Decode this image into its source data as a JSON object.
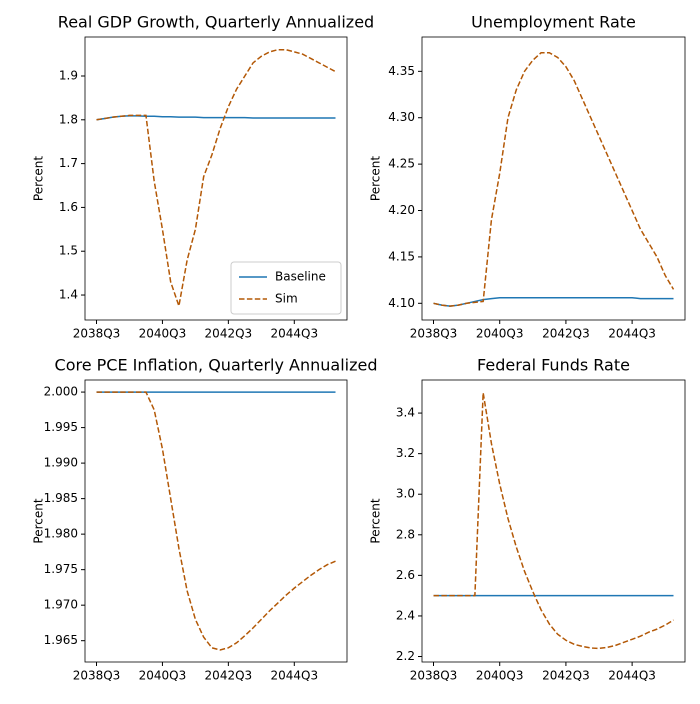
{
  "chart_data": [
    {
      "type": "line",
      "title": "Real GDP Growth, Quarterly Annualized",
      "y_label": "Percent",
      "legend": "lower right",
      "categories": [
        "2038Q3",
        null,
        null,
        null,
        null,
        null,
        null,
        null,
        "2040Q3",
        null,
        null,
        null,
        null,
        null,
        null,
        null,
        "2042Q3",
        null,
        null,
        null,
        null,
        null,
        null,
        null,
        "2044Q3",
        null,
        null,
        null,
        null,
        null
      ],
      "series": [
        {
          "name": "Baseline",
          "color": "#1f77b4",
          "linestyle": "solid",
          "values": [
            1.8,
            1.803,
            1.806,
            1.808,
            1.809,
            1.809,
            1.808,
            1.808,
            1.807,
            1.807,
            1.806,
            1.806,
            1.806,
            1.805,
            1.805,
            1.805,
            1.805,
            1.805,
            1.805,
            1.804,
            1.804,
            1.804,
            1.804,
            1.804,
            1.804,
            1.804,
            1.804,
            1.804,
            1.804,
            1.804
          ]
        },
        {
          "name": "Sim",
          "color": "#b35806",
          "linestyle": "dashed",
          "values": [
            1.8,
            1.803,
            1.806,
            1.808,
            1.81,
            1.81,
            1.81,
            1.66,
            1.55,
            1.43,
            1.375,
            1.48,
            1.55,
            1.67,
            1.72,
            1.78,
            1.83,
            1.87,
            1.9,
            1.93,
            1.945,
            1.955,
            1.96,
            1.96,
            1.955,
            1.95,
            1.94,
            1.93,
            1.92,
            1.91
          ]
        }
      ],
      "ylim": [
        1.343,
        1.989
      ],
      "yticks": [
        1.4,
        1.5,
        1.6,
        1.7,
        1.8,
        1.9
      ]
    },
    {
      "type": "line",
      "title": "Unemployment Rate",
      "y_label": "Percent",
      "categories": [
        "2038Q3",
        null,
        null,
        null,
        null,
        null,
        null,
        null,
        "2040Q3",
        null,
        null,
        null,
        null,
        null,
        null,
        null,
        "2042Q3",
        null,
        null,
        null,
        null,
        null,
        null,
        null,
        "2044Q3",
        null,
        null,
        null,
        null,
        null
      ],
      "series": [
        {
          "name": "Baseline",
          "color": "#1f77b4",
          "linestyle": "solid",
          "values": [
            4.1,
            4.098,
            4.097,
            4.098,
            4.1,
            4.102,
            4.104,
            4.105,
            4.106,
            4.106,
            4.106,
            4.106,
            4.106,
            4.106,
            4.106,
            4.106,
            4.106,
            4.106,
            4.106,
            4.106,
            4.106,
            4.106,
            4.106,
            4.106,
            4.106,
            4.105,
            4.105,
            4.105,
            4.105,
            4.105
          ]
        },
        {
          "name": "Sim",
          "color": "#b35806",
          "linestyle": "dashed",
          "values": [
            4.1,
            4.098,
            4.097,
            4.098,
            4.1,
            4.101,
            4.102,
            4.19,
            4.24,
            4.3,
            4.33,
            4.35,
            4.362,
            4.37,
            4.37,
            4.365,
            4.355,
            4.34,
            4.32,
            4.3,
            4.28,
            4.26,
            4.24,
            4.22,
            4.2,
            4.18,
            4.165,
            4.15,
            4.13,
            4.115
          ]
        }
      ],
      "ylim": [
        4.082,
        4.387
      ],
      "yticks": [
        {
          "value": 4.1,
          "label": "4.10"
        },
        4.15,
        {
          "value": 4.2,
          "label": "4.20"
        },
        4.25,
        {
          "value": 4.3,
          "label": "4.30"
        },
        4.35
      ]
    },
    {
      "type": "line",
      "title": "Core PCE Inflation, Quarterly Annualized",
      "y_label": "Percent",
      "categories": [
        "2038Q3",
        null,
        null,
        null,
        null,
        null,
        null,
        null,
        "2040Q3",
        null,
        null,
        null,
        null,
        null,
        null,
        null,
        "2042Q3",
        null,
        null,
        null,
        null,
        null,
        null,
        null,
        "2044Q3",
        null,
        null,
        null,
        null,
        null
      ],
      "series": [
        {
          "name": "Baseline",
          "color": "#1f77b4",
          "linestyle": "solid",
          "values": [
            2,
            2,
            2,
            2,
            2,
            2,
            2,
            2,
            2,
            2,
            2,
            2,
            2,
            2,
            2,
            2,
            2,
            2,
            2,
            2,
            2,
            2,
            2,
            2,
            2,
            2,
            2,
            2,
            2,
            2
          ]
        },
        {
          "name": "Sim",
          "color": "#b35806",
          "linestyle": "dashed",
          "values": [
            2,
            2,
            2,
            2,
            2,
            2,
            2,
            1.9975,
            1.992,
            1.985,
            1.978,
            1.972,
            1.968,
            1.9655,
            1.964,
            1.9637,
            1.964,
            1.9647,
            1.9657,
            1.9668,
            1.968,
            1.9692,
            1.9703,
            1.9714,
            1.9724,
            1.9733,
            1.9742,
            1.975,
            1.9757,
            1.9762
          ]
        }
      ],
      "ylim": [
        1.962,
        2.0017
      ],
      "yticks": [
        {
          "value": 1.965,
          "label": "1.965"
        },
        {
          "value": 1.97,
          "label": "1.970"
        },
        {
          "value": 1.975,
          "label": "1.975"
        },
        {
          "value": 1.98,
          "label": "1.980"
        },
        {
          "value": 1.985,
          "label": "1.985"
        },
        {
          "value": 1.99,
          "label": "1.990"
        },
        {
          "value": 1.995,
          "label": "1.995"
        },
        {
          "value": 2,
          "label": "2.000"
        }
      ]
    },
    {
      "type": "line",
      "title": "Federal Funds Rate",
      "y_label": "Percent",
      "categories": [
        "2038Q3",
        null,
        null,
        null,
        null,
        null,
        null,
        null,
        "2040Q3",
        null,
        null,
        null,
        null,
        null,
        null,
        null,
        "2042Q3",
        null,
        null,
        null,
        null,
        null,
        null,
        null,
        "2044Q3",
        null,
        null,
        null,
        null,
        null
      ],
      "series": [
        {
          "name": "Baseline",
          "color": "#1f77b4",
          "linestyle": "solid",
          "values": [
            2.5,
            2.5,
            2.5,
            2.5,
            2.5,
            2.5,
            2.5,
            2.5,
            2.5,
            2.5,
            2.5,
            2.5,
            2.5,
            2.5,
            2.5,
            2.5,
            2.5,
            2.5,
            2.5,
            2.5,
            2.5,
            2.5,
            2.5,
            2.5,
            2.5,
            2.5,
            2.5,
            2.5,
            2.5,
            2.5
          ]
        },
        {
          "name": "Sim",
          "color": "#b35806",
          "linestyle": "dashed",
          "values": [
            2.5,
            2.5,
            2.5,
            2.5,
            2.5,
            2.5,
            3.5,
            3.25,
            3.05,
            2.88,
            2.74,
            2.62,
            2.52,
            2.43,
            2.36,
            2.31,
            2.28,
            2.26,
            2.25,
            2.242,
            2.24,
            2.245,
            2.255,
            2.27,
            2.285,
            2.3,
            2.32,
            2.335,
            2.355,
            2.38
          ]
        }
      ],
      "ylim": [
        2.173,
        3.563
      ],
      "yticks": [
        2.2,
        2.4,
        2.6,
        2.8,
        {
          "value": 3,
          "label": "3.0"
        },
        3.2,
        3.4
      ]
    }
  ]
}
